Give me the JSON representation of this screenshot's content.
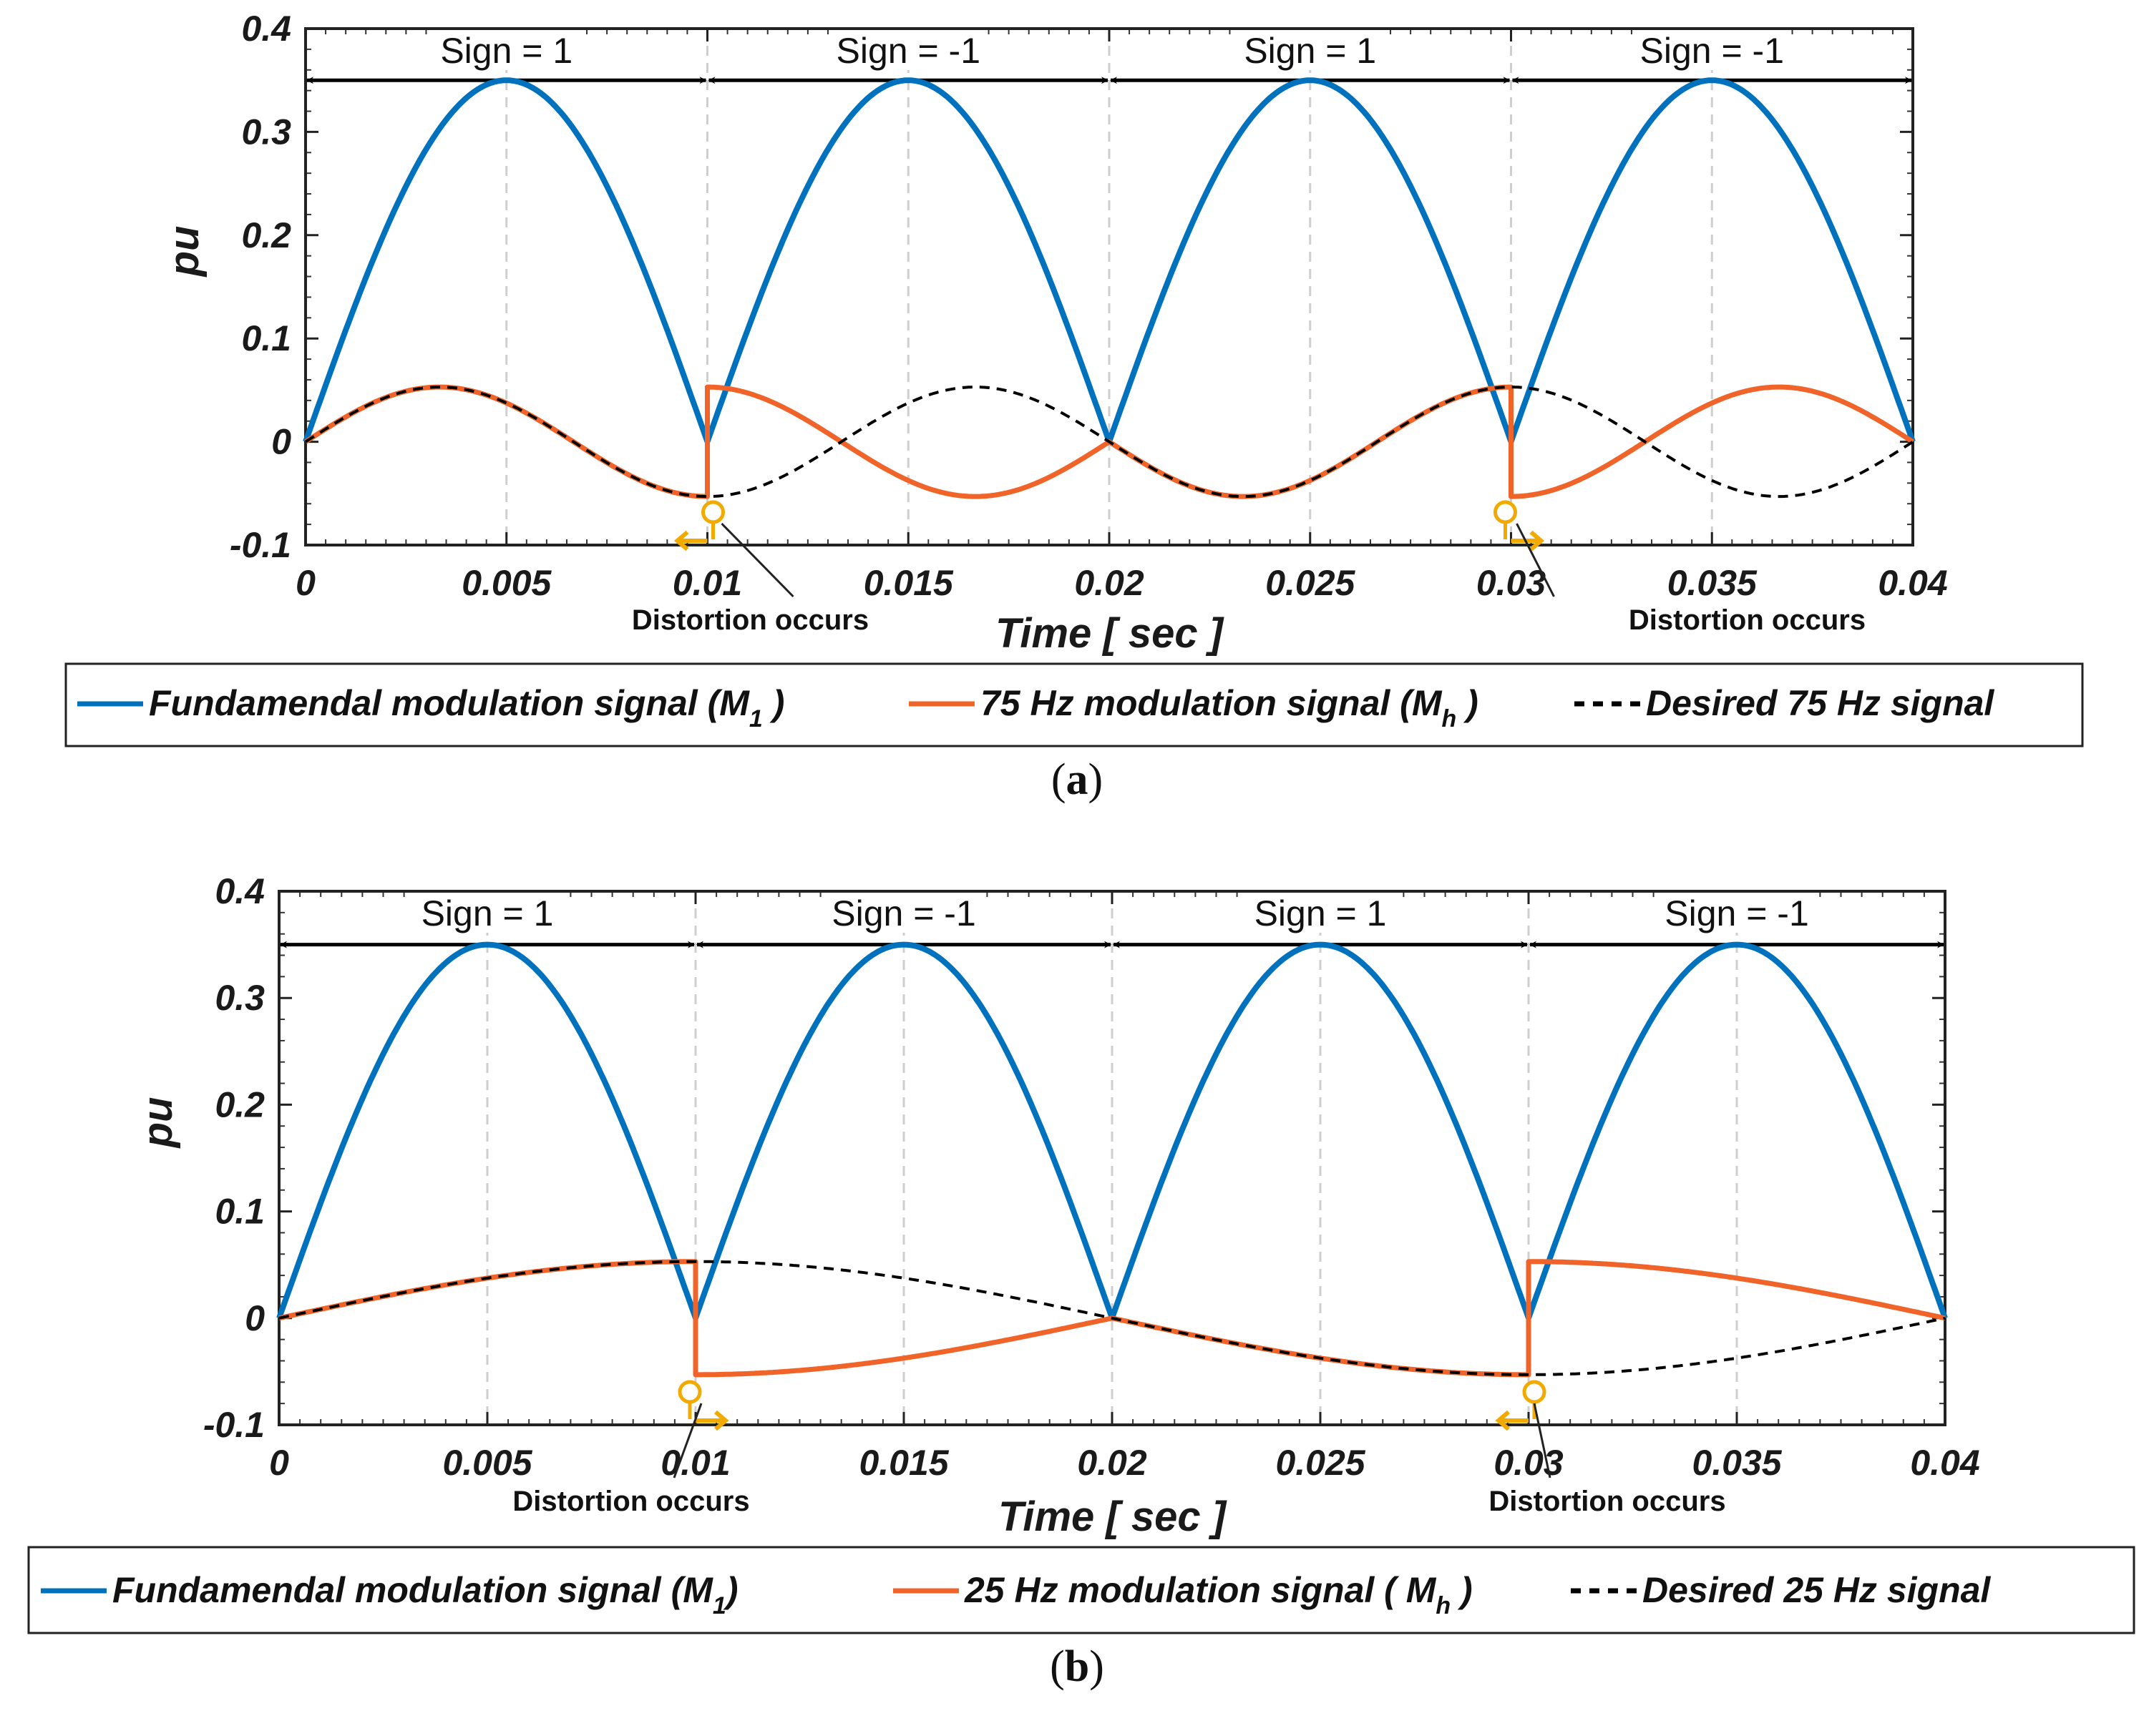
{
  "chart_data": [
    {
      "type": "line",
      "panel": "(a)",
      "caption": "a",
      "xlabel": "Time [ sec ]",
      "ylabel": "pu",
      "xlim": [
        0,
        0.04
      ],
      "ylim": [
        -0.1,
        0.4
      ],
      "xticks": [
        0,
        0.005,
        0.01,
        0.015,
        0.02,
        0.025,
        0.03,
        0.035,
        0.04
      ],
      "xtick_labels": [
        "0",
        "0.005",
        "0.01",
        "0.015",
        "0.02",
        "0.025",
        "0.03",
        "0.035",
        "0.04"
      ],
      "yticks": [
        -0.1,
        0,
        0.1,
        0.2,
        0.3,
        0.4
      ],
      "ytick_labels": [
        "-0.1",
        "0",
        "0.1",
        "0.2",
        "0.3",
        "0.4"
      ],
      "grid": "dashed vertical at x ticks",
      "sign_regions": [
        {
          "label": "Sign = 1",
          "from": 0,
          "to": 0.01
        },
        {
          "label": "Sign = -1",
          "from": 0.01,
          "to": 0.02
        },
        {
          "label": "Sign = 1",
          "from": 0.02,
          "to": 0.03
        },
        {
          "label": "Sign = -1",
          "from": 0.03,
          "to": 0.04
        }
      ],
      "annotations": [
        {
          "text": "Distortion occurs",
          "x": 0.01
        },
        {
          "text": "Distortion occurs",
          "x": 0.03
        }
      ],
      "series": [
        {
          "name": "Fundamendal modulation signal (M1)",
          "color": "#0072BD",
          "style": "solid",
          "formula": "0.35*|sin(2*pi*50*t)|"
        },
        {
          "name": "75 Hz modulation signal (Mh)",
          "color": "#F0642A",
          "style": "solid",
          "formula": "sign(t)*0.053*sin(2*pi*75*t), sign = +1,-1,+1,-1 per 0.01 s"
        },
        {
          "name": "Desired 75 Hz signal",
          "color": "#000000",
          "style": "dashed",
          "formula": "0.053*sin(2*pi*75*t)"
        }
      ],
      "legend": {
        "items": [
          {
            "text": "Fundamendal modulation signal (M",
            "sub": "1",
            "tail": " )",
            "color": "#0072BD",
            "style": "solid"
          },
          {
            "text": "75 Hz modulation signal (M",
            "sub": "h",
            "tail": " )",
            "color": "#F0642A",
            "style": "solid"
          },
          {
            "text": "Desired 75 Hz signal",
            "sub": "",
            "tail": "",
            "color": "#000000",
            "style": "dashed"
          }
        ]
      },
      "amplitude_fundamental": 0.35,
      "amplitude_harmonic": 0.053,
      "harmonic_freq_hz": 75,
      "fundamental_freq_hz": 50
    },
    {
      "type": "line",
      "panel": "(b)",
      "caption": "b",
      "xlabel": "Time [ sec ]",
      "ylabel": "pu",
      "xlim": [
        0,
        0.04
      ],
      "ylim": [
        -0.1,
        0.4
      ],
      "xticks": [
        0,
        0.005,
        0.01,
        0.015,
        0.02,
        0.025,
        0.03,
        0.035,
        0.04
      ],
      "xtick_labels": [
        "0",
        "0.005",
        "0.01",
        "0.015",
        "0.02",
        "0.025",
        "0.03",
        "0.035",
        "0.04"
      ],
      "yticks": [
        -0.1,
        0,
        0.1,
        0.2,
        0.3,
        0.4
      ],
      "ytick_labels": [
        "-0.1",
        "0",
        "0.1",
        "0.2",
        "0.3",
        "0.4"
      ],
      "grid": "dashed vertical at x ticks",
      "sign_regions": [
        {
          "label": "Sign = 1",
          "from": 0,
          "to": 0.01
        },
        {
          "label": "Sign = -1",
          "from": 0.01,
          "to": 0.02
        },
        {
          "label": "Sign = 1",
          "from": 0.02,
          "to": 0.03
        },
        {
          "label": "Sign = -1",
          "from": 0.03,
          "to": 0.04
        }
      ],
      "annotations": [
        {
          "text": "Distortion occurs",
          "x": 0.01
        },
        {
          "text": "Distortion occurs",
          "x": 0.03
        }
      ],
      "series": [
        {
          "name": "Fundamendal modulation signal (M1)",
          "color": "#0072BD",
          "style": "solid",
          "formula": "0.35*|sin(2*pi*50*t)|"
        },
        {
          "name": "25 Hz modulation signal ( Mh)",
          "color": "#F0642A",
          "style": "solid",
          "formula": "sign(t)*0.053*sin(2*pi*25*t), sign = +1,-1,+1,-1 per 0.01 s"
        },
        {
          "name": "Desired 25 Hz signal",
          "color": "#000000",
          "style": "dashed",
          "formula": "0.053*sin(2*pi*25*t)"
        }
      ],
      "legend": {
        "items": [
          {
            "text": "Fundamendal modulation signal (M",
            "sub": "1",
            "tail": ")",
            "color": "#0072BD",
            "style": "solid"
          },
          {
            "text": "25 Hz modulation signal ( M",
            "sub": "h",
            "tail": " )",
            "color": "#F0642A",
            "style": "solid"
          },
          {
            "text": "Desired 25 Hz signal",
            "sub": "",
            "tail": "",
            "color": "#000000",
            "style": "dashed"
          }
        ]
      },
      "amplitude_fundamental": 0.35,
      "amplitude_harmonic": 0.053,
      "harmonic_freq_hz": 25,
      "fundamental_freq_hz": 50
    }
  ]
}
